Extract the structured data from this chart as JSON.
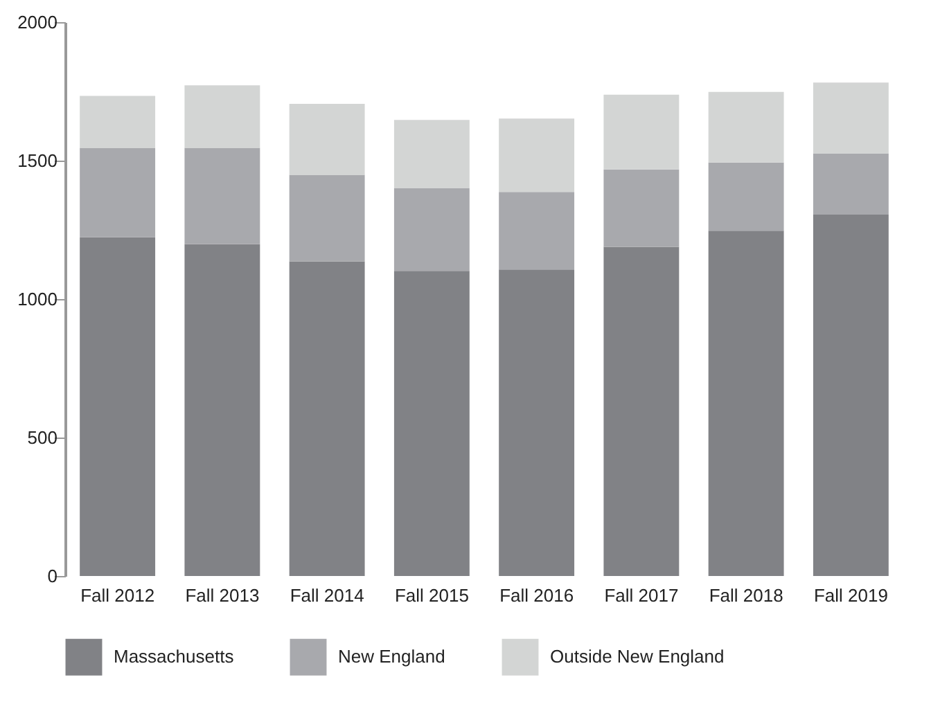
{
  "chart_data": {
    "type": "bar",
    "stacked": true,
    "categories": [
      "Fall 2012",
      "Fall 2013",
      "Fall 2014",
      "Fall 2015",
      "Fall 2016",
      "Fall 2017",
      "Fall 2018",
      "Fall 2019"
    ],
    "series": [
      {
        "name": "Massachusetts",
        "color": "#818286",
        "values": [
          1223,
          1198,
          1136,
          1102,
          1107,
          1189,
          1247,
          1305
        ]
      },
      {
        "name": "New England",
        "color": "#a8a9ad",
        "values": [
          323,
          348,
          313,
          299,
          280,
          279,
          246,
          221
        ]
      },
      {
        "name": "Outside New England",
        "color": "#d3d5d4",
        "values": [
          188,
          226,
          256,
          246,
          265,
          270,
          255,
          256
        ]
      }
    ],
    "ylim": [
      0,
      2000
    ],
    "yticks": [
      0,
      500,
      1000,
      1500,
      2000
    ],
    "grid": false,
    "legend": "bottom"
  }
}
